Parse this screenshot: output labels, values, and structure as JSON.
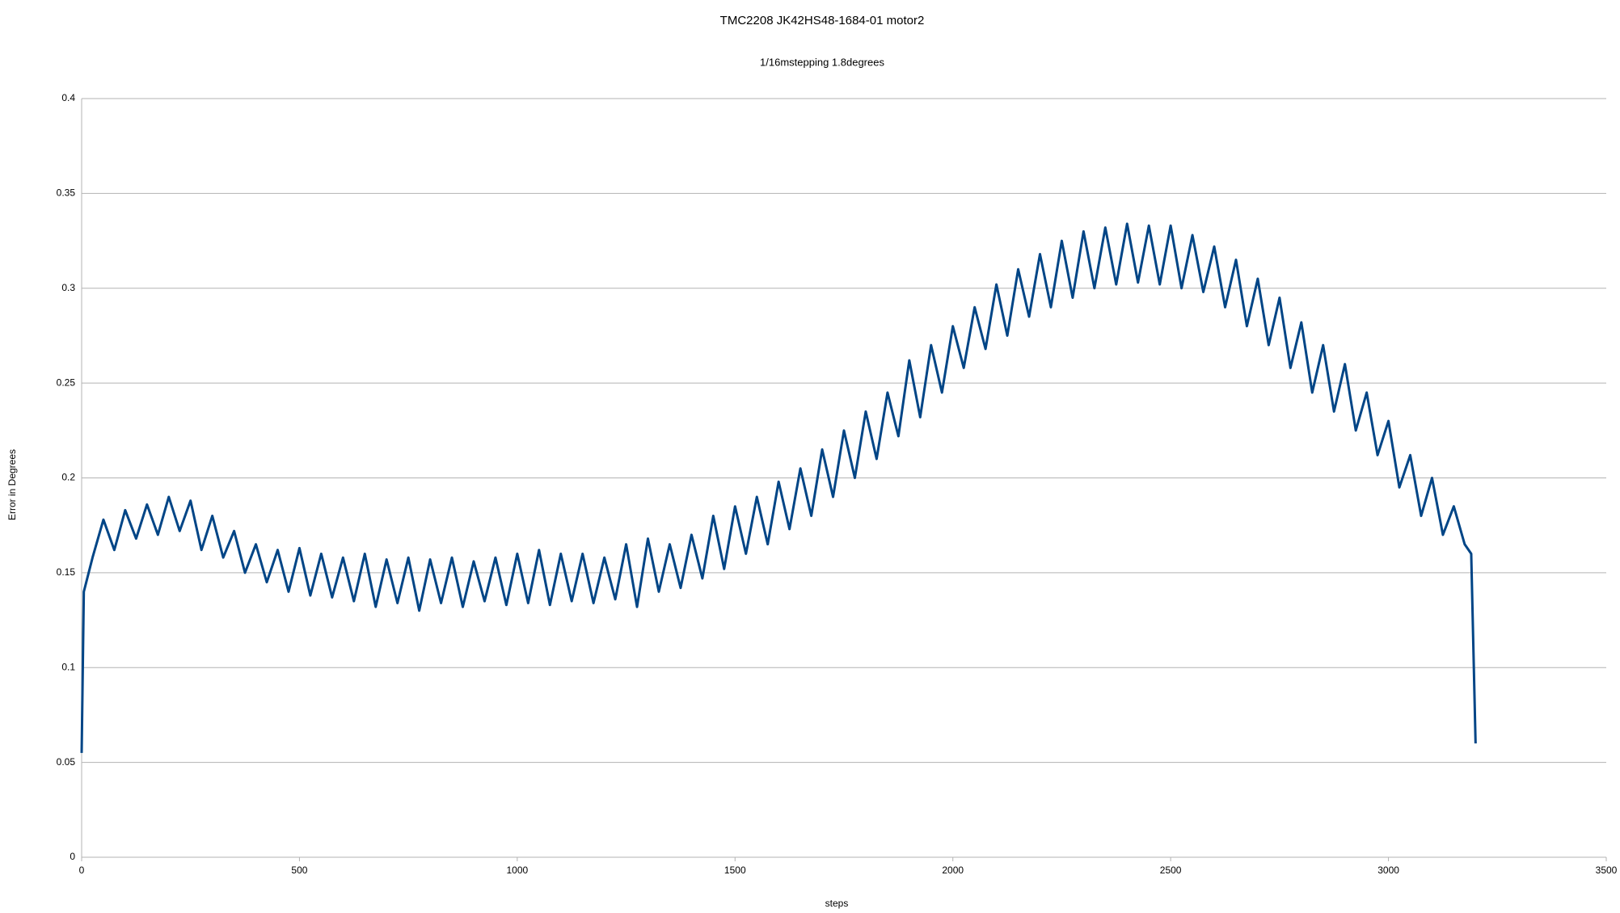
{
  "chart_data": {
    "type": "line",
    "title": "TMC2208 JK42HS48-1684-01 motor2",
    "subtitle": "1/16mstepping 1.8degrees",
    "xlabel": "steps",
    "ylabel": "Error in Degrees",
    "xlim": [
      0,
      3500
    ],
    "xticks": [
      0,
      500,
      1000,
      1500,
      2000,
      2500,
      3000,
      3500
    ],
    "ylim": [
      0,
      0.4
    ],
    "yticks": [
      0,
      0.05,
      0.1,
      0.15,
      0.2,
      0.25,
      0.3,
      0.35,
      0.4
    ],
    "grid": true,
    "series": [
      {
        "color": "#004586",
        "x": [
          0,
          5,
          25,
          50,
          75,
          100,
          125,
          150,
          175,
          200,
          225,
          250,
          275,
          300,
          325,
          350,
          375,
          400,
          425,
          450,
          475,
          500,
          525,
          550,
          575,
          600,
          625,
          650,
          675,
          700,
          725,
          750,
          775,
          800,
          825,
          850,
          875,
          900,
          925,
          950,
          975,
          1000,
          1025,
          1050,
          1075,
          1100,
          1125,
          1150,
          1175,
          1200,
          1225,
          1250,
          1275,
          1300,
          1325,
          1350,
          1375,
          1400,
          1425,
          1450,
          1475,
          1500,
          1525,
          1550,
          1575,
          1600,
          1625,
          1650,
          1675,
          1700,
          1725,
          1750,
          1775,
          1800,
          1825,
          1850,
          1875,
          1900,
          1925,
          1950,
          1975,
          2000,
          2025,
          2050,
          2075,
          2100,
          2125,
          2150,
          2175,
          2200,
          2225,
          2250,
          2275,
          2300,
          2325,
          2350,
          2375,
          2400,
          2425,
          2450,
          2475,
          2500,
          2525,
          2550,
          2575,
          2600,
          2625,
          2650,
          2675,
          2700,
          2725,
          2750,
          2775,
          2800,
          2825,
          2850,
          2875,
          2900,
          2925,
          2950,
          2975,
          3000,
          3025,
          3050,
          3075,
          3100,
          3125,
          3150,
          3175,
          3190,
          3200
        ],
        "values": [
          0.055,
          0.14,
          0.158,
          0.178,
          0.162,
          0.183,
          0.168,
          0.186,
          0.17,
          0.19,
          0.172,
          0.188,
          0.162,
          0.18,
          0.158,
          0.172,
          0.15,
          0.165,
          0.145,
          0.162,
          0.14,
          0.163,
          0.138,
          0.16,
          0.137,
          0.158,
          0.135,
          0.16,
          0.132,
          0.157,
          0.134,
          0.158,
          0.13,
          0.157,
          0.134,
          0.158,
          0.132,
          0.156,
          0.135,
          0.158,
          0.133,
          0.16,
          0.134,
          0.162,
          0.133,
          0.16,
          0.135,
          0.16,
          0.134,
          0.158,
          0.136,
          0.165,
          0.132,
          0.168,
          0.14,
          0.165,
          0.142,
          0.17,
          0.147,
          0.18,
          0.152,
          0.185,
          0.16,
          0.19,
          0.165,
          0.198,
          0.173,
          0.205,
          0.18,
          0.215,
          0.19,
          0.225,
          0.2,
          0.235,
          0.21,
          0.245,
          0.222,
          0.262,
          0.232,
          0.27,
          0.245,
          0.28,
          0.258,
          0.29,
          0.268,
          0.302,
          0.275,
          0.31,
          0.285,
          0.318,
          0.29,
          0.325,
          0.295,
          0.33,
          0.3,
          0.332,
          0.302,
          0.334,
          0.303,
          0.333,
          0.302,
          0.333,
          0.3,
          0.328,
          0.298,
          0.322,
          0.29,
          0.315,
          0.28,
          0.305,
          0.27,
          0.295,
          0.258,
          0.282,
          0.245,
          0.27,
          0.235,
          0.26,
          0.225,
          0.245,
          0.212,
          0.23,
          0.195,
          0.212,
          0.18,
          0.2,
          0.17,
          0.185,
          0.165,
          0.16,
          0.06
        ]
      }
    ]
  }
}
